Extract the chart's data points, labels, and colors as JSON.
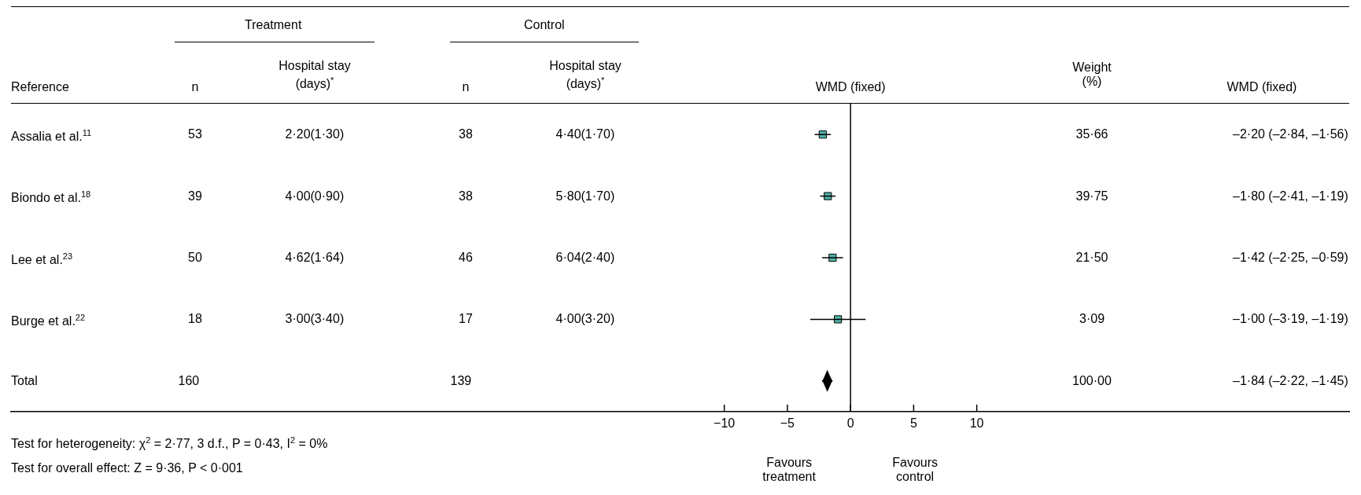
{
  "chart_data": {
    "type": "scatter",
    "orientation": "horizontal",
    "categories": [
      "Assalia et al.$^{11}$",
      "Biondo et al.$^{18}$",
      "Lee et al.$^{23}$",
      "Burge et al.$^{22}$",
      "Total"
    ],
    "series": [
      {
        "marker": "square",
        "color": "#4fb3aa",
        "values": [
          -2.2,
          -1.8,
          -1.42,
          -1.0,
          null
        ],
        "errors": [
          [
            -2.84,
            -1.56
          ],
          [
            -2.41,
            -1.19
          ],
          [
            -2.25,
            -0.59
          ],
          [
            -3.19,
            1.19
          ],
          null
        ]
      },
      {
        "marker": "diamond",
        "color": "#000000",
        "values": [
          null,
          null,
          null,
          null,
          -1.84
        ],
        "errors": [
          null,
          null,
          null,
          null,
          [
            -2.22,
            -1.45
          ]
        ]
      }
    ],
    "xlabel": "WMD (fixed)",
    "xlim": [
      -66.5,
      39.5
    ],
    "xticks": [
      -10,
      -5,
      0,
      5,
      10
    ],
    "ref_lines": [
      {
        "axis": "x",
        "value": 0
      }
    ],
    "annotations": [
      "Treatment",
      "Control",
      "Reference",
      "n",
      "Hospital stay (days)$^{*}$",
      "n",
      "Hospital stay (days)$^{*}$",
      "Weight (%)",
      "WMD (fixed)",
      "53",
      "2·20(1·30)",
      "38",
      "4·40(1·70)",
      "35·66",
      "39",
      "4·00(0·90)",
      "38",
      "5·80(1·70)",
      "39·75",
      "50",
      "4·62(1·64)",
      "46",
      "6·04(2·40)",
      "21·50",
      "18",
      "3·00(3·40)",
      "17",
      "4·00(3·20)",
      "3·09",
      "160",
      "139",
      "100·00",
      "Favours treatment",
      "Favours control",
      "Test for heterogeneity: χ$^{2}$ = 2·77, 3 d.f., P = 0·43, I$^{2}$ = 0%",
      "Test for overall effect: Z = 9·36, P < 0·001",
      "–2·20 (–2·84, –1·56)",
      "–1·80 (–2·41, –1·19)",
      "–1·42 (–2·25, –0·59)",
      "–1·00 (–3·19, –1·19)",
      "–1·84 (–2·22, –1·45)"
    ]
  }
}
